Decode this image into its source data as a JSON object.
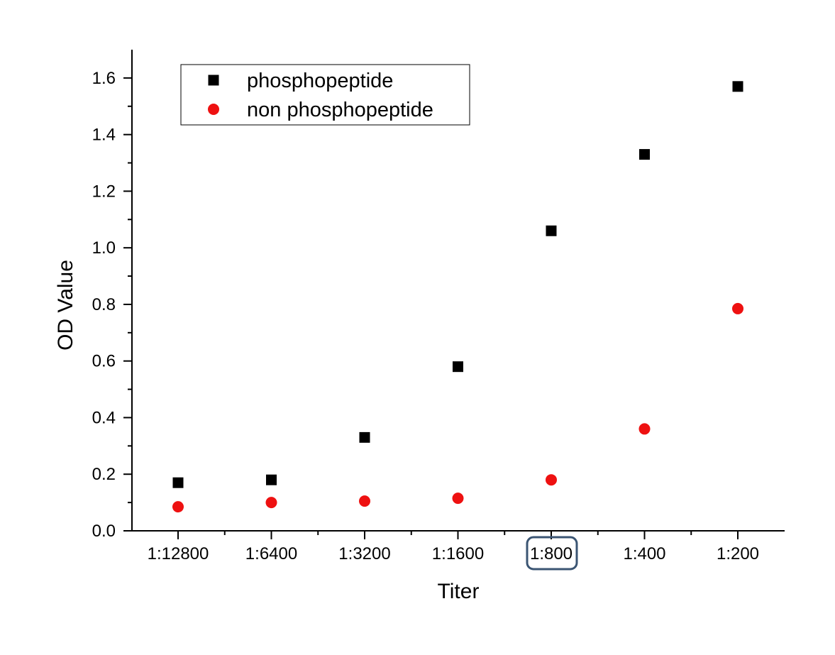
{
  "chart_data": {
    "type": "scatter",
    "title": "",
    "xlabel": "Titer",
    "ylabel": "OD Value",
    "categories": [
      "1:12800",
      "1:6400",
      "1:3200",
      "1:1600",
      "1:800",
      "1:400",
      "1:200"
    ],
    "highlighted_category": "1:800",
    "highlight_color": "#3b5573",
    "ylim": [
      0,
      1.7
    ],
    "yticks": [
      "0.0",
      "0.2",
      "0.4",
      "0.6",
      "0.8",
      "1.0",
      "1.2",
      "1.4",
      "1.6"
    ],
    "grid": false,
    "legend_position": "top-left",
    "series": [
      {
        "name": "phosphopeptide",
        "marker": "square",
        "color": "#000000",
        "values": [
          0.17,
          0.18,
          0.33,
          0.58,
          1.06,
          1.33,
          1.57
        ]
      },
      {
        "name": "non phosphopeptide",
        "marker": "circle",
        "color": "#ee1111",
        "values": [
          0.085,
          0.1,
          0.105,
          0.115,
          0.18,
          0.36,
          0.785
        ]
      }
    ]
  }
}
